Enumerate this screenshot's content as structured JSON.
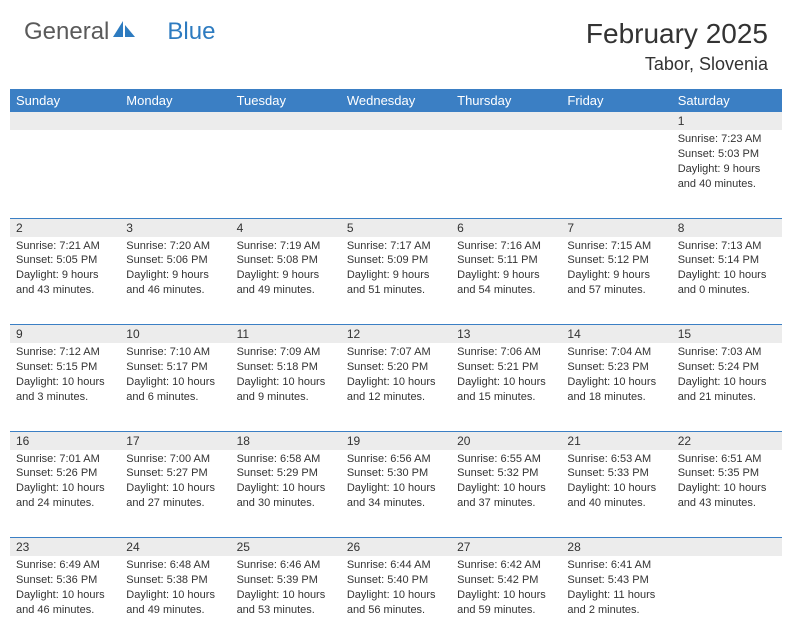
{
  "logo": {
    "part1": "General",
    "part2": "Blue"
  },
  "title": "February 2025",
  "location": "Tabor, Slovenia",
  "colors": {
    "header_bg": "#3b7fc4",
    "header_text": "#ffffff",
    "daynum_bg": "#ececec",
    "text": "#333333",
    "logo_gray": "#5a5a5a",
    "logo_blue": "#2d7bc0"
  },
  "weekdays": [
    "Sunday",
    "Monday",
    "Tuesday",
    "Wednesday",
    "Thursday",
    "Friday",
    "Saturday"
  ],
  "weeks": [
    {
      "nums": [
        "",
        "",
        "",
        "",
        "",
        "",
        "1"
      ],
      "cells": [
        null,
        null,
        null,
        null,
        null,
        null,
        {
          "sunrise": "Sunrise: 7:23 AM",
          "sunset": "Sunset: 5:03 PM",
          "daylight": "Daylight: 9 hours and 40 minutes."
        }
      ]
    },
    {
      "nums": [
        "2",
        "3",
        "4",
        "5",
        "6",
        "7",
        "8"
      ],
      "cells": [
        {
          "sunrise": "Sunrise: 7:21 AM",
          "sunset": "Sunset: 5:05 PM",
          "daylight": "Daylight: 9 hours and 43 minutes."
        },
        {
          "sunrise": "Sunrise: 7:20 AM",
          "sunset": "Sunset: 5:06 PM",
          "daylight": "Daylight: 9 hours and 46 minutes."
        },
        {
          "sunrise": "Sunrise: 7:19 AM",
          "sunset": "Sunset: 5:08 PM",
          "daylight": "Daylight: 9 hours and 49 minutes."
        },
        {
          "sunrise": "Sunrise: 7:17 AM",
          "sunset": "Sunset: 5:09 PM",
          "daylight": "Daylight: 9 hours and 51 minutes."
        },
        {
          "sunrise": "Sunrise: 7:16 AM",
          "sunset": "Sunset: 5:11 PM",
          "daylight": "Daylight: 9 hours and 54 minutes."
        },
        {
          "sunrise": "Sunrise: 7:15 AM",
          "sunset": "Sunset: 5:12 PM",
          "daylight": "Daylight: 9 hours and 57 minutes."
        },
        {
          "sunrise": "Sunrise: 7:13 AM",
          "sunset": "Sunset: 5:14 PM",
          "daylight": "Daylight: 10 hours and 0 minutes."
        }
      ]
    },
    {
      "nums": [
        "9",
        "10",
        "11",
        "12",
        "13",
        "14",
        "15"
      ],
      "cells": [
        {
          "sunrise": "Sunrise: 7:12 AM",
          "sunset": "Sunset: 5:15 PM",
          "daylight": "Daylight: 10 hours and 3 minutes."
        },
        {
          "sunrise": "Sunrise: 7:10 AM",
          "sunset": "Sunset: 5:17 PM",
          "daylight": "Daylight: 10 hours and 6 minutes."
        },
        {
          "sunrise": "Sunrise: 7:09 AM",
          "sunset": "Sunset: 5:18 PM",
          "daylight": "Daylight: 10 hours and 9 minutes."
        },
        {
          "sunrise": "Sunrise: 7:07 AM",
          "sunset": "Sunset: 5:20 PM",
          "daylight": "Daylight: 10 hours and 12 minutes."
        },
        {
          "sunrise": "Sunrise: 7:06 AM",
          "sunset": "Sunset: 5:21 PM",
          "daylight": "Daylight: 10 hours and 15 minutes."
        },
        {
          "sunrise": "Sunrise: 7:04 AM",
          "sunset": "Sunset: 5:23 PM",
          "daylight": "Daylight: 10 hours and 18 minutes."
        },
        {
          "sunrise": "Sunrise: 7:03 AM",
          "sunset": "Sunset: 5:24 PM",
          "daylight": "Daylight: 10 hours and 21 minutes."
        }
      ]
    },
    {
      "nums": [
        "16",
        "17",
        "18",
        "19",
        "20",
        "21",
        "22"
      ],
      "cells": [
        {
          "sunrise": "Sunrise: 7:01 AM",
          "sunset": "Sunset: 5:26 PM",
          "daylight": "Daylight: 10 hours and 24 minutes."
        },
        {
          "sunrise": "Sunrise: 7:00 AM",
          "sunset": "Sunset: 5:27 PM",
          "daylight": "Daylight: 10 hours and 27 minutes."
        },
        {
          "sunrise": "Sunrise: 6:58 AM",
          "sunset": "Sunset: 5:29 PM",
          "daylight": "Daylight: 10 hours and 30 minutes."
        },
        {
          "sunrise": "Sunrise: 6:56 AM",
          "sunset": "Sunset: 5:30 PM",
          "daylight": "Daylight: 10 hours and 34 minutes."
        },
        {
          "sunrise": "Sunrise: 6:55 AM",
          "sunset": "Sunset: 5:32 PM",
          "daylight": "Daylight: 10 hours and 37 minutes."
        },
        {
          "sunrise": "Sunrise: 6:53 AM",
          "sunset": "Sunset: 5:33 PM",
          "daylight": "Daylight: 10 hours and 40 minutes."
        },
        {
          "sunrise": "Sunrise: 6:51 AM",
          "sunset": "Sunset: 5:35 PM",
          "daylight": "Daylight: 10 hours and 43 minutes."
        }
      ]
    },
    {
      "nums": [
        "23",
        "24",
        "25",
        "26",
        "27",
        "28",
        ""
      ],
      "cells": [
        {
          "sunrise": "Sunrise: 6:49 AM",
          "sunset": "Sunset: 5:36 PM",
          "daylight": "Daylight: 10 hours and 46 minutes."
        },
        {
          "sunrise": "Sunrise: 6:48 AM",
          "sunset": "Sunset: 5:38 PM",
          "daylight": "Daylight: 10 hours and 49 minutes."
        },
        {
          "sunrise": "Sunrise: 6:46 AM",
          "sunset": "Sunset: 5:39 PM",
          "daylight": "Daylight: 10 hours and 53 minutes."
        },
        {
          "sunrise": "Sunrise: 6:44 AM",
          "sunset": "Sunset: 5:40 PM",
          "daylight": "Daylight: 10 hours and 56 minutes."
        },
        {
          "sunrise": "Sunrise: 6:42 AM",
          "sunset": "Sunset: 5:42 PM",
          "daylight": "Daylight: 10 hours and 59 minutes."
        },
        {
          "sunrise": "Sunrise: 6:41 AM",
          "sunset": "Sunset: 5:43 PM",
          "daylight": "Daylight: 11 hours and 2 minutes."
        },
        null
      ]
    }
  ]
}
